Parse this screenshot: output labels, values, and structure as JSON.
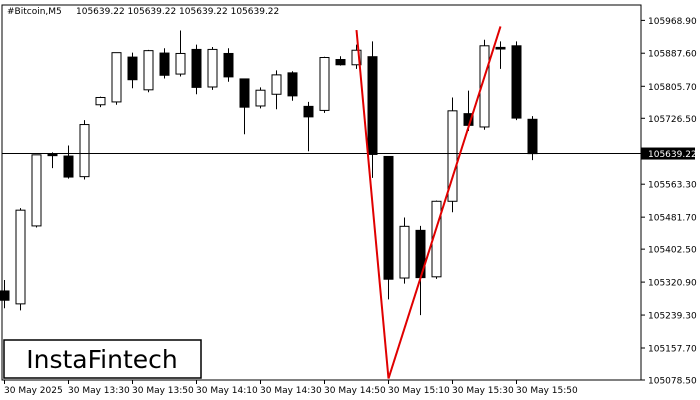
{
  "header": {
    "symbol": "#Bitcoin,M5",
    "ohlc": "105639.22 105639.22 105639.22 105639.22"
  },
  "logo": {
    "text": "InstaFintech"
  },
  "colors": {
    "bull_body": "#ffffff",
    "bear_body": "#000000",
    "candle_outline": "#000000",
    "pattern_line": "#e00000",
    "price_line": "#000000",
    "price_label_bg": "#000000",
    "background": "#ffffff"
  },
  "chart_data": {
    "type": "candlestick",
    "symbol": "#Bitcoin",
    "timeframe": "M5",
    "ylim": [
      105078.5,
      106007.0
    ],
    "y_ticks": [
      105968.9,
      105887.6,
      105805.7,
      105726.5,
      105639.22,
      105563.3,
      105481.7,
      105402.5,
      105320.9,
      105239.3,
      105157.7,
      105078.5
    ],
    "y_tick_labels": [
      "105968.90",
      "105887.60",
      "105805.70",
      "105726.50",
      "105639.22",
      "105563.30",
      "105481.70",
      "105402.50",
      "105320.90",
      "105239.30",
      "105157.70",
      "105078.50"
    ],
    "x_tick_labels": [
      "30 May 2025",
      "30 May 13:30",
      "30 May 13:50",
      "30 May 14:10",
      "30 May 14:30",
      "30 May 14:50",
      "30 May 15:10",
      "30 May 15:30",
      "30 May 15:50"
    ],
    "x_tick_bar_index": [
      0,
      4,
      8,
      12,
      16,
      20,
      24,
      28,
      32
    ],
    "current_price": 105639.22,
    "current_price_label": "105639.22",
    "candles": [
      {
        "o": 105299,
        "h": 105326,
        "c": 105276,
        "l": 105256
      },
      {
        "o": 105267,
        "h": 105504,
        "c": 105499,
        "l": 105251
      },
      {
        "o": 105460,
        "h": 105636,
        "c": 105636,
        "l": 105456
      },
      {
        "o": 105639,
        "h": 105642,
        "c": 105634,
        "l": 105603
      },
      {
        "o": 105633,
        "h": 105659,
        "c": 105581,
        "l": 105577
      },
      {
        "o": 105582,
        "h": 105722,
        "c": 105711,
        "l": 105575
      },
      {
        "o": 105760,
        "h": 105780,
        "c": 105778,
        "l": 105754
      },
      {
        "o": 105767,
        "h": 105889,
        "c": 105889,
        "l": 105760
      },
      {
        "o": 105878,
        "h": 105889,
        "c": 105822,
        "l": 105801
      },
      {
        "o": 105797,
        "h": 105896,
        "c": 105894,
        "l": 105791
      },
      {
        "o": 105888,
        "h": 105900,
        "c": 105833,
        "l": 105825
      },
      {
        "o": 105836,
        "h": 105944,
        "c": 105887,
        "l": 105830
      },
      {
        "o": 105897,
        "h": 105909,
        "c": 105803,
        "l": 105786
      },
      {
        "o": 105804,
        "h": 105903,
        "c": 105897,
        "l": 105797
      },
      {
        "o": 105887,
        "h": 105900,
        "c": 105829,
        "l": 105817
      },
      {
        "o": 105824,
        "h": 105825,
        "c": 105754,
        "l": 105687
      },
      {
        "o": 105757,
        "h": 105803,
        "c": 105796,
        "l": 105751
      },
      {
        "o": 105786,
        "h": 105845,
        "c": 105834,
        "l": 105749
      },
      {
        "o": 105839,
        "h": 105843,
        "c": 105782,
        "l": 105770
      },
      {
        "o": 105756,
        "h": 105767,
        "c": 105730,
        "l": 105645
      },
      {
        "o": 105746,
        "h": 105879,
        "c": 105877,
        "l": 105740
      },
      {
        "o": 105872,
        "h": 105880,
        "c": 105859,
        "l": 105857
      },
      {
        "o": 105859,
        "h": 105909,
        "c": 105895,
        "l": 105849
      },
      {
        "o": 105879,
        "h": 105917,
        "c": 105637,
        "l": 105579
      },
      {
        "o": 105632,
        "h": 105633,
        "c": 105328,
        "l": 105278
      },
      {
        "o": 105331,
        "h": 105481,
        "c": 105459,
        "l": 105317
      },
      {
        "o": 105449,
        "h": 105460,
        "c": 105332,
        "l": 105239
      },
      {
        "o": 105334,
        "h": 105523,
        "c": 105521,
        "l": 105329
      },
      {
        "o": 105521,
        "h": 105778,
        "c": 105745,
        "l": 105494
      },
      {
        "o": 105738,
        "h": 105795,
        "c": 105709,
        "l": 105695
      },
      {
        "o": 105705,
        "h": 105921,
        "c": 105906,
        "l": 105698
      },
      {
        "o": 105902,
        "h": 105917,
        "c": 105898,
        "l": 105849
      },
      {
        "o": 105906,
        "h": 105917,
        "c": 105727,
        "l": 105722
      },
      {
        "o": 105724,
        "h": 105732,
        "c": 105639,
        "l": 105623
      }
    ],
    "pattern_lines": [
      {
        "from_bar": 22,
        "from_price": 105945,
        "to_bar": 24,
        "to_price": 105082
      },
      {
        "from_bar": 24,
        "from_price": 105082,
        "to_bar": 31,
        "to_price": 105954
      }
    ]
  }
}
